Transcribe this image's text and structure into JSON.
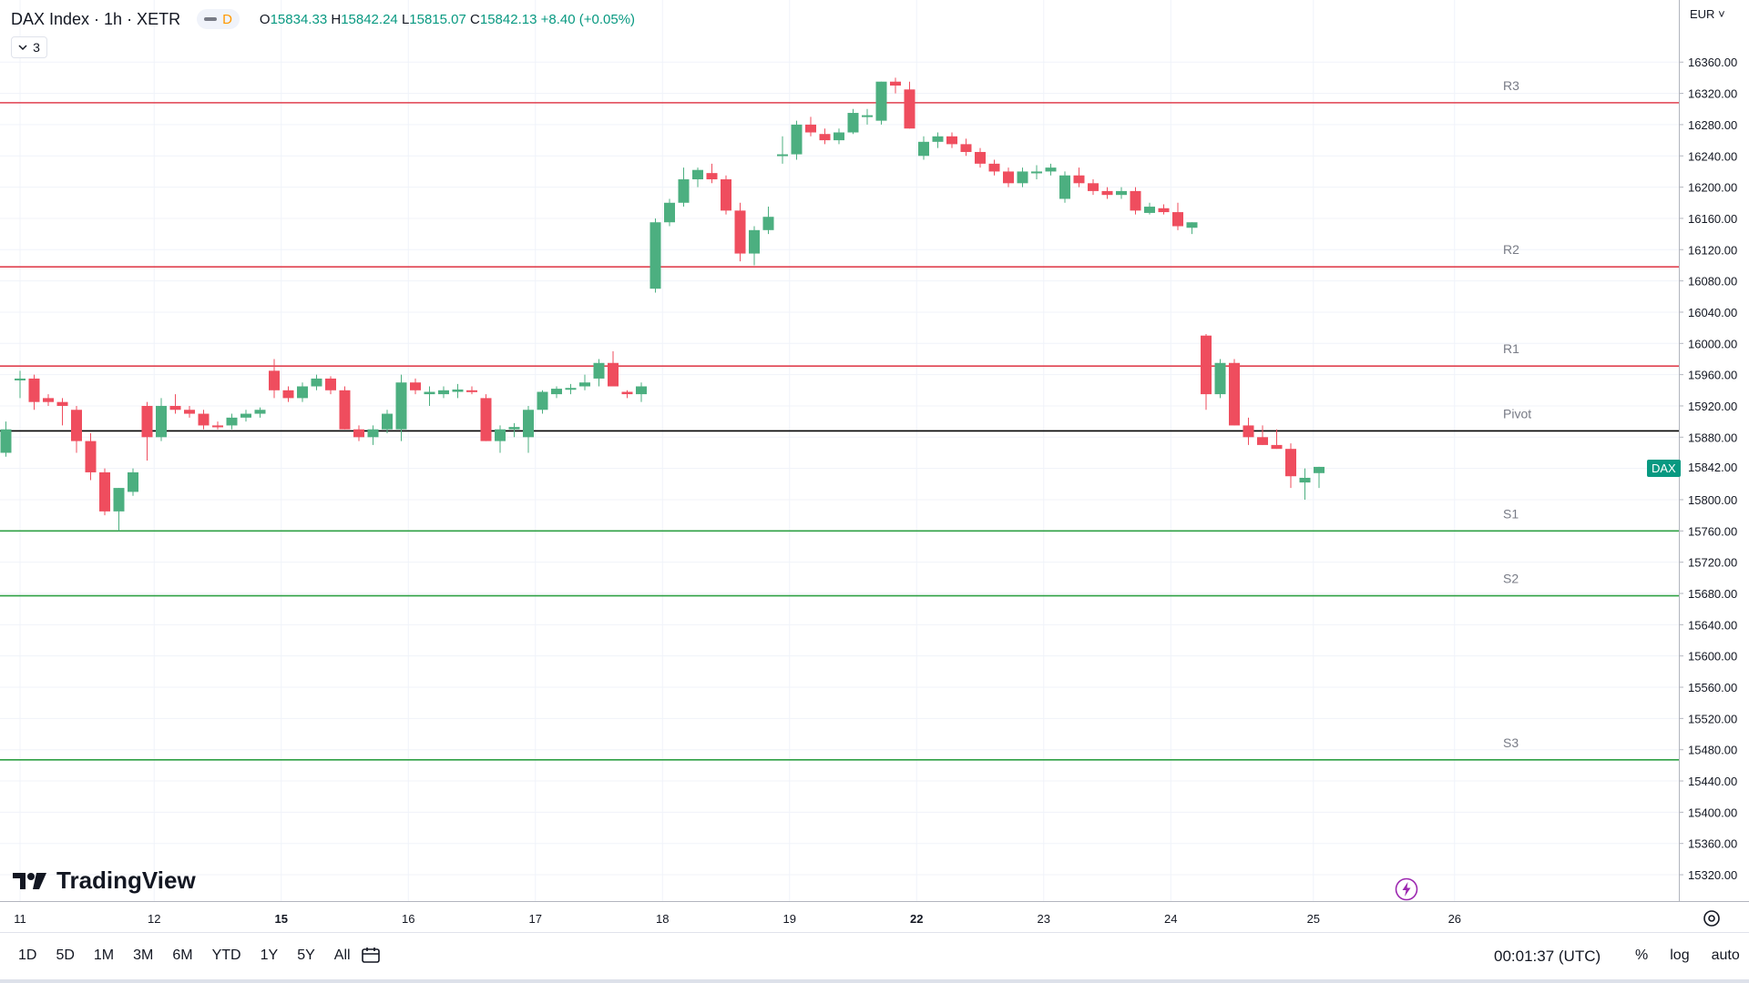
{
  "header": {
    "symbol": "DAX Index · 1h · XETR",
    "badge_letter": "D",
    "open_label": "O",
    "open": "15834.33",
    "high_label": "H",
    "high": "15842.24",
    "low_label": "L",
    "low": "15815.07",
    "close_label": "C",
    "close": "15842.13",
    "change": "+8.40 (+0.05%)",
    "indicators_count": "3"
  },
  "currency": "EUR",
  "last_price_tag": "DAX",
  "brand": "TradingView",
  "bottom_bar": {
    "ranges": [
      "1D",
      "5D",
      "1M",
      "3M",
      "6M",
      "YTD",
      "1Y",
      "5Y",
      "All"
    ],
    "clock": "00:01:37 (UTC)",
    "options": [
      "%",
      "log",
      "auto"
    ]
  },
  "colors": {
    "up": "#4caf80",
    "down": "#ef4d5e",
    "resistance": "#e0414f",
    "support": "#2ea043",
    "pivot": "#000000"
  },
  "chart_data": {
    "type": "candlestick",
    "x_tick_labels": [
      {
        "label": "11",
        "bar": 1
      },
      {
        "label": "12",
        "bar": 10.5
      },
      {
        "label": "15",
        "bar": 19.5
      },
      {
        "label": "16",
        "bar": 28.5
      },
      {
        "label": "17",
        "bar": 37.5
      },
      {
        "label": "18",
        "bar": 46.5
      },
      {
        "label": "19",
        "bar": 55.5
      },
      {
        "label": "22",
        "bar": 64.5
      },
      {
        "label": "23",
        "bar": 73.5
      },
      {
        "label": "24",
        "bar": 82.5
      },
      {
        "label": "25",
        "bar": 92.6
      },
      {
        "label": "26",
        "bar": 102.6
      }
    ],
    "bold_ticks": [
      "15",
      "22"
    ],
    "y_ticks": [
      15320,
      15360,
      15400,
      15440,
      15480,
      15520,
      15560,
      15600,
      15640,
      15680,
      15720,
      15760,
      15800,
      15840,
      15880,
      15920,
      15960,
      16000,
      16040,
      16080,
      16120,
      16160,
      16200,
      16240,
      16280,
      16320,
      16360
    ],
    "ylim": [
      15302,
      16383
    ],
    "levels": [
      {
        "name": "R3",
        "value": 16308,
        "kind": "resistance"
      },
      {
        "name": "R2",
        "value": 16098,
        "kind": "resistance"
      },
      {
        "name": "R1",
        "value": 15971,
        "kind": "resistance"
      },
      {
        "name": "Pivot",
        "value": 15888,
        "kind": "pivot"
      },
      {
        "name": "S1",
        "value": 15760,
        "kind": "support"
      },
      {
        "name": "S2",
        "value": 15677,
        "kind": "support"
      },
      {
        "name": "S3",
        "value": 15467,
        "kind": "support"
      }
    ],
    "last_price": 15842,
    "candles": [
      [
        15860,
        15900,
        15855,
        15890
      ],
      [
        15955,
        15965,
        15930,
        15955
      ],
      [
        15955,
        15960,
        15915,
        15925
      ],
      [
        15930,
        15935,
        15920,
        15925
      ],
      [
        15925,
        15930,
        15895,
        15920
      ],
      [
        15915,
        15920,
        15860,
        15875
      ],
      [
        15875,
        15885,
        15825,
        15835
      ],
      [
        15835,
        15840,
        15780,
        15785
      ],
      [
        15785,
        15815,
        15760,
        15815
      ],
      [
        15810,
        15840,
        15805,
        15835
      ],
      [
        15920,
        15925,
        15850,
        15880
      ],
      [
        15880,
        15930,
        15875,
        15920
      ],
      [
        15920,
        15935,
        15910,
        15915
      ],
      [
        15915,
        15920,
        15905,
        15910
      ],
      [
        15910,
        15915,
        15890,
        15895
      ],
      [
        15895,
        15900,
        15890,
        15893
      ],
      [
        15895,
        15910,
        15890,
        15905
      ],
      [
        15905,
        15915,
        15900,
        15910
      ],
      [
        15910,
        15918,
        15905,
        15915
      ],
      [
        15965,
        15980,
        15930,
        15940
      ],
      [
        15940,
        15945,
        15925,
        15930
      ],
      [
        15930,
        15950,
        15925,
        15945
      ],
      [
        15945,
        15960,
        15940,
        15955
      ],
      [
        15955,
        15958,
        15935,
        15940
      ],
      [
        15940,
        15945,
        15890,
        15890
      ],
      [
        15890,
        15895,
        15875,
        15880
      ],
      [
        15880,
        15895,
        15870,
        15890
      ],
      [
        15890,
        15915,
        15885,
        15910
      ],
      [
        15890,
        15960,
        15875,
        15950
      ],
      [
        15950,
        15955,
        15935,
        15940
      ],
      [
        15935,
        15945,
        15920,
        15938
      ],
      [
        15935,
        15945,
        15930,
        15940
      ],
      [
        15938,
        15948,
        15930,
        15941
      ],
      [
        15940,
        15945,
        15935,
        15938
      ],
      [
        15930,
        15935,
        15875,
        15875
      ],
      [
        15875,
        15895,
        15860,
        15890
      ],
      [
        15890,
        15898,
        15880,
        15893
      ],
      [
        15880,
        15920,
        15860,
        15915
      ],
      [
        15915,
        15940,
        15910,
        15938
      ],
      [
        15935,
        15945,
        15930,
        15942
      ],
      [
        15942,
        15948,
        15935,
        15943
      ],
      [
        15945,
        15960,
        15940,
        15950
      ],
      [
        15955,
        15980,
        15945,
        15975
      ],
      [
        15975,
        15990,
        15945,
        15945
      ],
      [
        15938,
        15940,
        15930,
        15935
      ],
      [
        15935,
        15950,
        15925,
        15945
      ],
      [
        16070,
        16160,
        16065,
        16155
      ],
      [
        16155,
        16185,
        16150,
        16180
      ],
      [
        16180,
        16225,
        16175,
        16210
      ],
      [
        16210,
        16225,
        16200,
        16222
      ],
      [
        16218,
        16230,
        16205,
        16210
      ],
      [
        16210,
        16215,
        16165,
        16170
      ],
      [
        16170,
        16180,
        16105,
        16115
      ],
      [
        16115,
        16150,
        16100,
        16145
      ],
      [
        16145,
        16175,
        16140,
        16162
      ],
      [
        16240,
        16265,
        16230,
        16242
      ],
      [
        16242,
        16285,
        16235,
        16280
      ],
      [
        16280,
        16290,
        16265,
        16270
      ],
      [
        16268,
        16275,
        16255,
        16260
      ],
      [
        16260,
        16275,
        16255,
        16270
      ],
      [
        16270,
        16300,
        16268,
        16295
      ],
      [
        16290,
        16300,
        16280,
        16292
      ],
      [
        16285,
        16335,
        16280,
        16335
      ],
      [
        16335,
        16340,
        16320,
        16330
      ],
      [
        16325,
        16335,
        16275,
        16275
      ],
      [
        16240,
        16265,
        16235,
        16258
      ],
      [
        16258,
        16270,
        16250,
        16265
      ],
      [
        16265,
        16270,
        16250,
        16255
      ],
      [
        16255,
        16262,
        16240,
        16245
      ],
      [
        16245,
        16250,
        16225,
        16230
      ],
      [
        16230,
        16235,
        16215,
        16220
      ],
      [
        16220,
        16225,
        16200,
        16205
      ],
      [
        16205,
        16225,
        16200,
        16220
      ],
      [
        16218,
        16228,
        16210,
        16220
      ],
      [
        16220,
        16230,
        16215,
        16225
      ],
      [
        16185,
        16220,
        16180,
        16215
      ],
      [
        16215,
        16225,
        16200,
        16205
      ],
      [
        16205,
        16210,
        16190,
        16195
      ],
      [
        16195,
        16200,
        16185,
        16190
      ],
      [
        16190,
        16200,
        16185,
        16195
      ],
      [
        16195,
        16200,
        16165,
        16170
      ],
      [
        16167,
        16180,
        16165,
        16175
      ],
      [
        16173,
        16178,
        16165,
        16168
      ],
      [
        16168,
        16180,
        16145,
        16150
      ],
      [
        16148,
        16155,
        16140,
        16155
      ],
      [
        16010,
        16012,
        15915,
        15935
      ],
      [
        15935,
        15980,
        15930,
        15975
      ],
      [
        15975,
        15980,
        15895,
        15895
      ],
      [
        15895,
        15905,
        15870,
        15880
      ],
      [
        15880,
        15895,
        15870,
        15870
      ],
      [
        15870,
        15890,
        15865,
        15865
      ],
      [
        15865,
        15872,
        15815,
        15830
      ],
      [
        15822,
        15840,
        15800,
        15828
      ],
      [
        15834,
        15842,
        15815,
        15842
      ]
    ]
  }
}
